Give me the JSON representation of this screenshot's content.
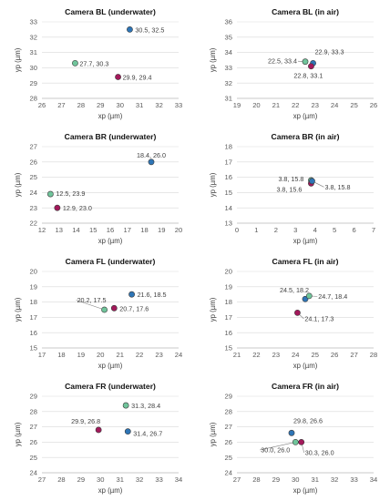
{
  "chart_data": [
    {
      "type": "scatter",
      "title": "Camera BL (underwater)",
      "xlabel": "xp (µm)",
      "ylabel": "yp (µm)",
      "xlim": [
        26,
        33
      ],
      "ylim": [
        28,
        33
      ],
      "grid": true,
      "xticks": [
        "26",
        "27",
        "28",
        "29",
        "30",
        "31",
        "32",
        "33"
      ],
      "yticks": [
        "28",
        "29",
        "30",
        "31",
        "32",
        "33"
      ],
      "points": [
        {
          "x": 30.5,
          "y": 32.5,
          "label": "30.5, 32.5",
          "color": "#2e75b6"
        },
        {
          "x": 27.7,
          "y": 30.3,
          "label": "27.7, 30.3",
          "color": "#70c59b"
        },
        {
          "x": 29.9,
          "y": 29.4,
          "label": "29.9, 29.4",
          "color": "#a3195b"
        }
      ]
    },
    {
      "type": "scatter",
      "title": "Camera BL (in air)",
      "xlabel": "xp (µm)",
      "ylabel": "yp (µm)",
      "xlim": [
        19,
        26
      ],
      "ylim": [
        31,
        36
      ],
      "grid": true,
      "xticks": [
        "19",
        "20",
        "21",
        "22",
        "23",
        "24",
        "25",
        "26"
      ],
      "yticks": [
        "31",
        "32",
        "33",
        "34",
        "35",
        "36"
      ],
      "points": [
        {
          "x": 22.5,
          "y": 33.4,
          "label": "22.5, 33.4",
          "color": "#70c59b"
        },
        {
          "x": 22.9,
          "y": 33.3,
          "label": "22.9, 33.3",
          "color": "#2e75b6"
        },
        {
          "x": 22.8,
          "y": 33.1,
          "label": "22.8, 33.1",
          "color": "#a3195b"
        }
      ]
    },
    {
      "type": "scatter",
      "title": "Camera BR (underwater)",
      "xlabel": "xp (µm)",
      "ylabel": "yp (µm)",
      "xlim": [
        12,
        20
      ],
      "ylim": [
        22,
        27
      ],
      "grid": true,
      "xticks": [
        "12",
        "13",
        "14",
        "15",
        "16",
        "17",
        "18",
        "19",
        "20"
      ],
      "yticks": [
        "22",
        "23",
        "24",
        "25",
        "26",
        "27"
      ],
      "points": [
        {
          "x": 18.4,
          "y": 26.0,
          "label": "18.4, 26.0",
          "color": "#2e75b6"
        },
        {
          "x": 12.5,
          "y": 23.9,
          "label": "12.5, 23.9",
          "color": "#70c59b"
        },
        {
          "x": 12.9,
          "y": 23.0,
          "label": "12.9, 23.0",
          "color": "#a3195b"
        }
      ]
    },
    {
      "type": "scatter",
      "title": "Camera BR (in air)",
      "xlabel": "xp (µm)",
      "ylabel": "yp (µm)",
      "xlim": [
        0,
        7
      ],
      "ylim": [
        13,
        18
      ],
      "grid": true,
      "xticks": [
        "0",
        "1",
        "2",
        "3",
        "4",
        "5",
        "6",
        "7"
      ],
      "yticks": [
        "13",
        "14",
        "15",
        "16",
        "17",
        "18"
      ],
      "points": [
        {
          "x": 3.8,
          "y": 15.8,
          "label": "3.8, 15.8",
          "color": "#70c59b"
        },
        {
          "x": 3.8,
          "y": 15.6,
          "label": "3.8, 15.6",
          "color": "#a3195b"
        },
        {
          "x": 3.85,
          "y": 15.75,
          "label": "3.8, 15.8",
          "color": "#2e75b6"
        }
      ]
    },
    {
      "type": "scatter",
      "title": "Camera FL (underwater)",
      "xlabel": "xp (µm)",
      "ylabel": "yp (µm)",
      "xlim": [
        17,
        24
      ],
      "ylim": [
        15,
        20
      ],
      "grid": true,
      "xticks": [
        "17",
        "18",
        "19",
        "20",
        "21",
        "22",
        "23",
        "24"
      ],
      "yticks": [
        "15",
        "16",
        "17",
        "18",
        "19",
        "20"
      ],
      "points": [
        {
          "x": 21.6,
          "y": 18.5,
          "label": "21.6, 18.5",
          "color": "#2e75b6"
        },
        {
          "x": 20.2,
          "y": 17.5,
          "label": "20.2, 17.5",
          "color": "#70c59b"
        },
        {
          "x": 20.7,
          "y": 17.6,
          "label": "20.7, 17.6",
          "color": "#a3195b"
        }
      ]
    },
    {
      "type": "scatter",
      "title": "Camera FL (in air)",
      "xlabel": "xp (µm)",
      "ylabel": "yp (µm)",
      "xlim": [
        21,
        28
      ],
      "ylim": [
        15,
        20
      ],
      "grid": true,
      "xticks": [
        "21",
        "22",
        "23",
        "24",
        "25",
        "26",
        "27",
        "28"
      ],
      "yticks": [
        "15",
        "16",
        "17",
        "18",
        "19",
        "20"
      ],
      "points": [
        {
          "x": 24.5,
          "y": 18.2,
          "label": "24.5, 18.2",
          "color": "#2e75b6"
        },
        {
          "x": 24.7,
          "y": 18.4,
          "label": "24.7, 18.4",
          "color": "#70c59b"
        },
        {
          "x": 24.1,
          "y": 17.3,
          "label": "24.1, 17.3",
          "color": "#a3195b"
        }
      ]
    },
    {
      "type": "scatter",
      "title": "Camera FR (underwater)",
      "xlabel": "xp (µm)",
      "ylabel": "yp (µm)",
      "xlim": [
        27,
        34
      ],
      "ylim": [
        24,
        29
      ],
      "grid": true,
      "xticks": [
        "27",
        "28",
        "29",
        "30",
        "31",
        "32",
        "33",
        "34"
      ],
      "yticks": [
        "24",
        "25",
        "26",
        "27",
        "28",
        "29"
      ],
      "points": [
        {
          "x": 31.3,
          "y": 28.4,
          "label": "31.3, 28.4",
          "color": "#70c59b"
        },
        {
          "x": 29.9,
          "y": 26.8,
          "label": "29.9, 26.8",
          "color": "#a3195b"
        },
        {
          "x": 31.4,
          "y": 26.7,
          "label": "31.4, 26.7",
          "color": "#2e75b6"
        }
      ]
    },
    {
      "type": "scatter",
      "title": "Camera FR (in air)",
      "xlabel": "xp (µm)",
      "ylabel": "yp (µm)",
      "xlim": [
        27,
        34
      ],
      "ylim": [
        24,
        29
      ],
      "grid": true,
      "xticks": [
        "27",
        "28",
        "29",
        "30",
        "31",
        "32",
        "33",
        "34"
      ],
      "yticks": [
        "24",
        "25",
        "26",
        "27",
        "28",
        "29"
      ],
      "points": [
        {
          "x": 29.8,
          "y": 26.6,
          "label": "29.8, 26.6",
          "color": "#2e75b6"
        },
        {
          "x": 30.0,
          "y": 26.0,
          "label": "30.0, 26.0",
          "color": "#70c59b"
        },
        {
          "x": 30.3,
          "y": 26.0,
          "label": "30.3, 26.0",
          "color": "#a3195b"
        }
      ]
    }
  ]
}
